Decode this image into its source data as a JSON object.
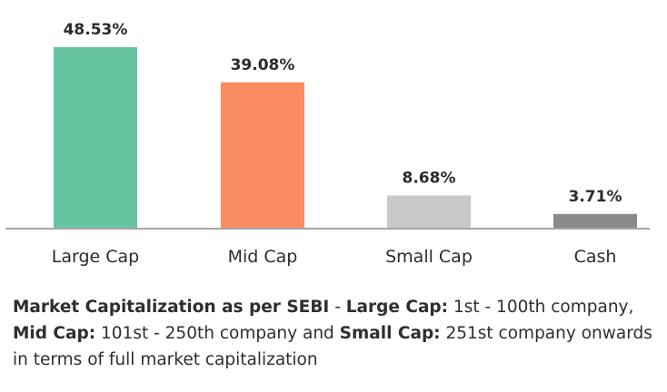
{
  "chart_data": {
    "type": "bar",
    "categories": [
      "Large Cap",
      "Mid Cap",
      "Small Cap",
      "Cash"
    ],
    "values": [
      48.53,
      39.08,
      8.68,
      3.71
    ],
    "value_labels": [
      "48.53%",
      "39.08%",
      "8.68%",
      "3.71%"
    ],
    "colors": [
      "#66c5a0",
      "#fb8b60",
      "#c9c9c9",
      "#8a8a8a"
    ],
    "ylim": [
      0,
      48.53
    ],
    "grid": false,
    "legend": "none"
  },
  "footnote": {
    "parts": [
      {
        "text": "Market Capitalization as per SEBI",
        "bold": true
      },
      {
        "text": " - ",
        "bold": false
      },
      {
        "text": "Large Cap:",
        "bold": true
      },
      {
        "text": " 1st - 100th company, ",
        "bold": false
      },
      {
        "text": "Mid Cap:",
        "bold": true
      },
      {
        "text": " 101st - 250th company and ",
        "bold": false
      },
      {
        "text": "Small Cap:",
        "bold": true
      },
      {
        "text": " 251st company onwards in terms of full market capitalization",
        "bold": false
      }
    ]
  }
}
